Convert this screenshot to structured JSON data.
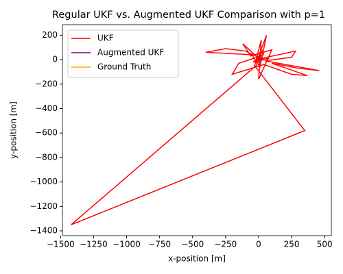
{
  "chart_data": {
    "type": "line",
    "title": "Regular UKF vs. Augmented UKF Comparison with p=1",
    "xlabel": "x-position [m]",
    "ylabel": "y-position [m]",
    "xlim": [
      -1486,
      551
    ],
    "ylim": [
      -1439,
      286
    ],
    "xticks": [
      {
        "value": -1500,
        "label": "−1500"
      },
      {
        "value": -1250,
        "label": "−1250"
      },
      {
        "value": -1000,
        "label": "−1000"
      },
      {
        "value": -750,
        "label": "−750"
      },
      {
        "value": -500,
        "label": "−500"
      },
      {
        "value": -250,
        "label": "−250"
      },
      0,
      250,
      500
    ],
    "yticks": [
      {
        "value": -1400,
        "label": "−1400"
      },
      {
        "value": -1200,
        "label": "−1200"
      },
      {
        "value": -1000,
        "label": "−1000"
      },
      {
        "value": -800,
        "label": "−800"
      },
      {
        "value": -600,
        "label": "−600"
      },
      {
        "value": -400,
        "label": "−400"
      },
      {
        "value": -200,
        "label": "−200"
      },
      0,
      200
    ],
    "legend": "upper left",
    "series": [
      {
        "name": "UKF",
        "color": "#ff0000",
        "x": [
          0,
          30,
          -20,
          60,
          10,
          -50,
          -400,
          -250,
          -100,
          20,
          280,
          250,
          50,
          460,
          300,
          100,
          370,
          250,
          40,
          -200,
          -150,
          -10,
          -120,
          -60,
          100,
          0,
          20,
          -30,
          350,
          -1420,
          -20,
          40,
          -40,
          80,
          0
        ],
        "y": [
          0,
          80,
          -30,
          200,
          -60,
          40,
          60,
          90,
          70,
          10,
          70,
          20,
          -10,
          -90,
          -70,
          -30,
          -130,
          -120,
          -40,
          -120,
          -30,
          20,
          130,
          30,
          80,
          -160,
          160,
          -50,
          -580,
          -1350,
          -50,
          50,
          -20,
          10,
          0
        ]
      },
      {
        "name": "Augmented UKF",
        "color": "#800080",
        "x": [
          0,
          10,
          -5,
          0
        ],
        "y": [
          0,
          5,
          10,
          0
        ]
      },
      {
        "name": "Ground Truth",
        "color": "#ffa500",
        "x": [
          0,
          8,
          -4,
          0
        ],
        "y": [
          0,
          4,
          8,
          0
        ]
      }
    ]
  }
}
